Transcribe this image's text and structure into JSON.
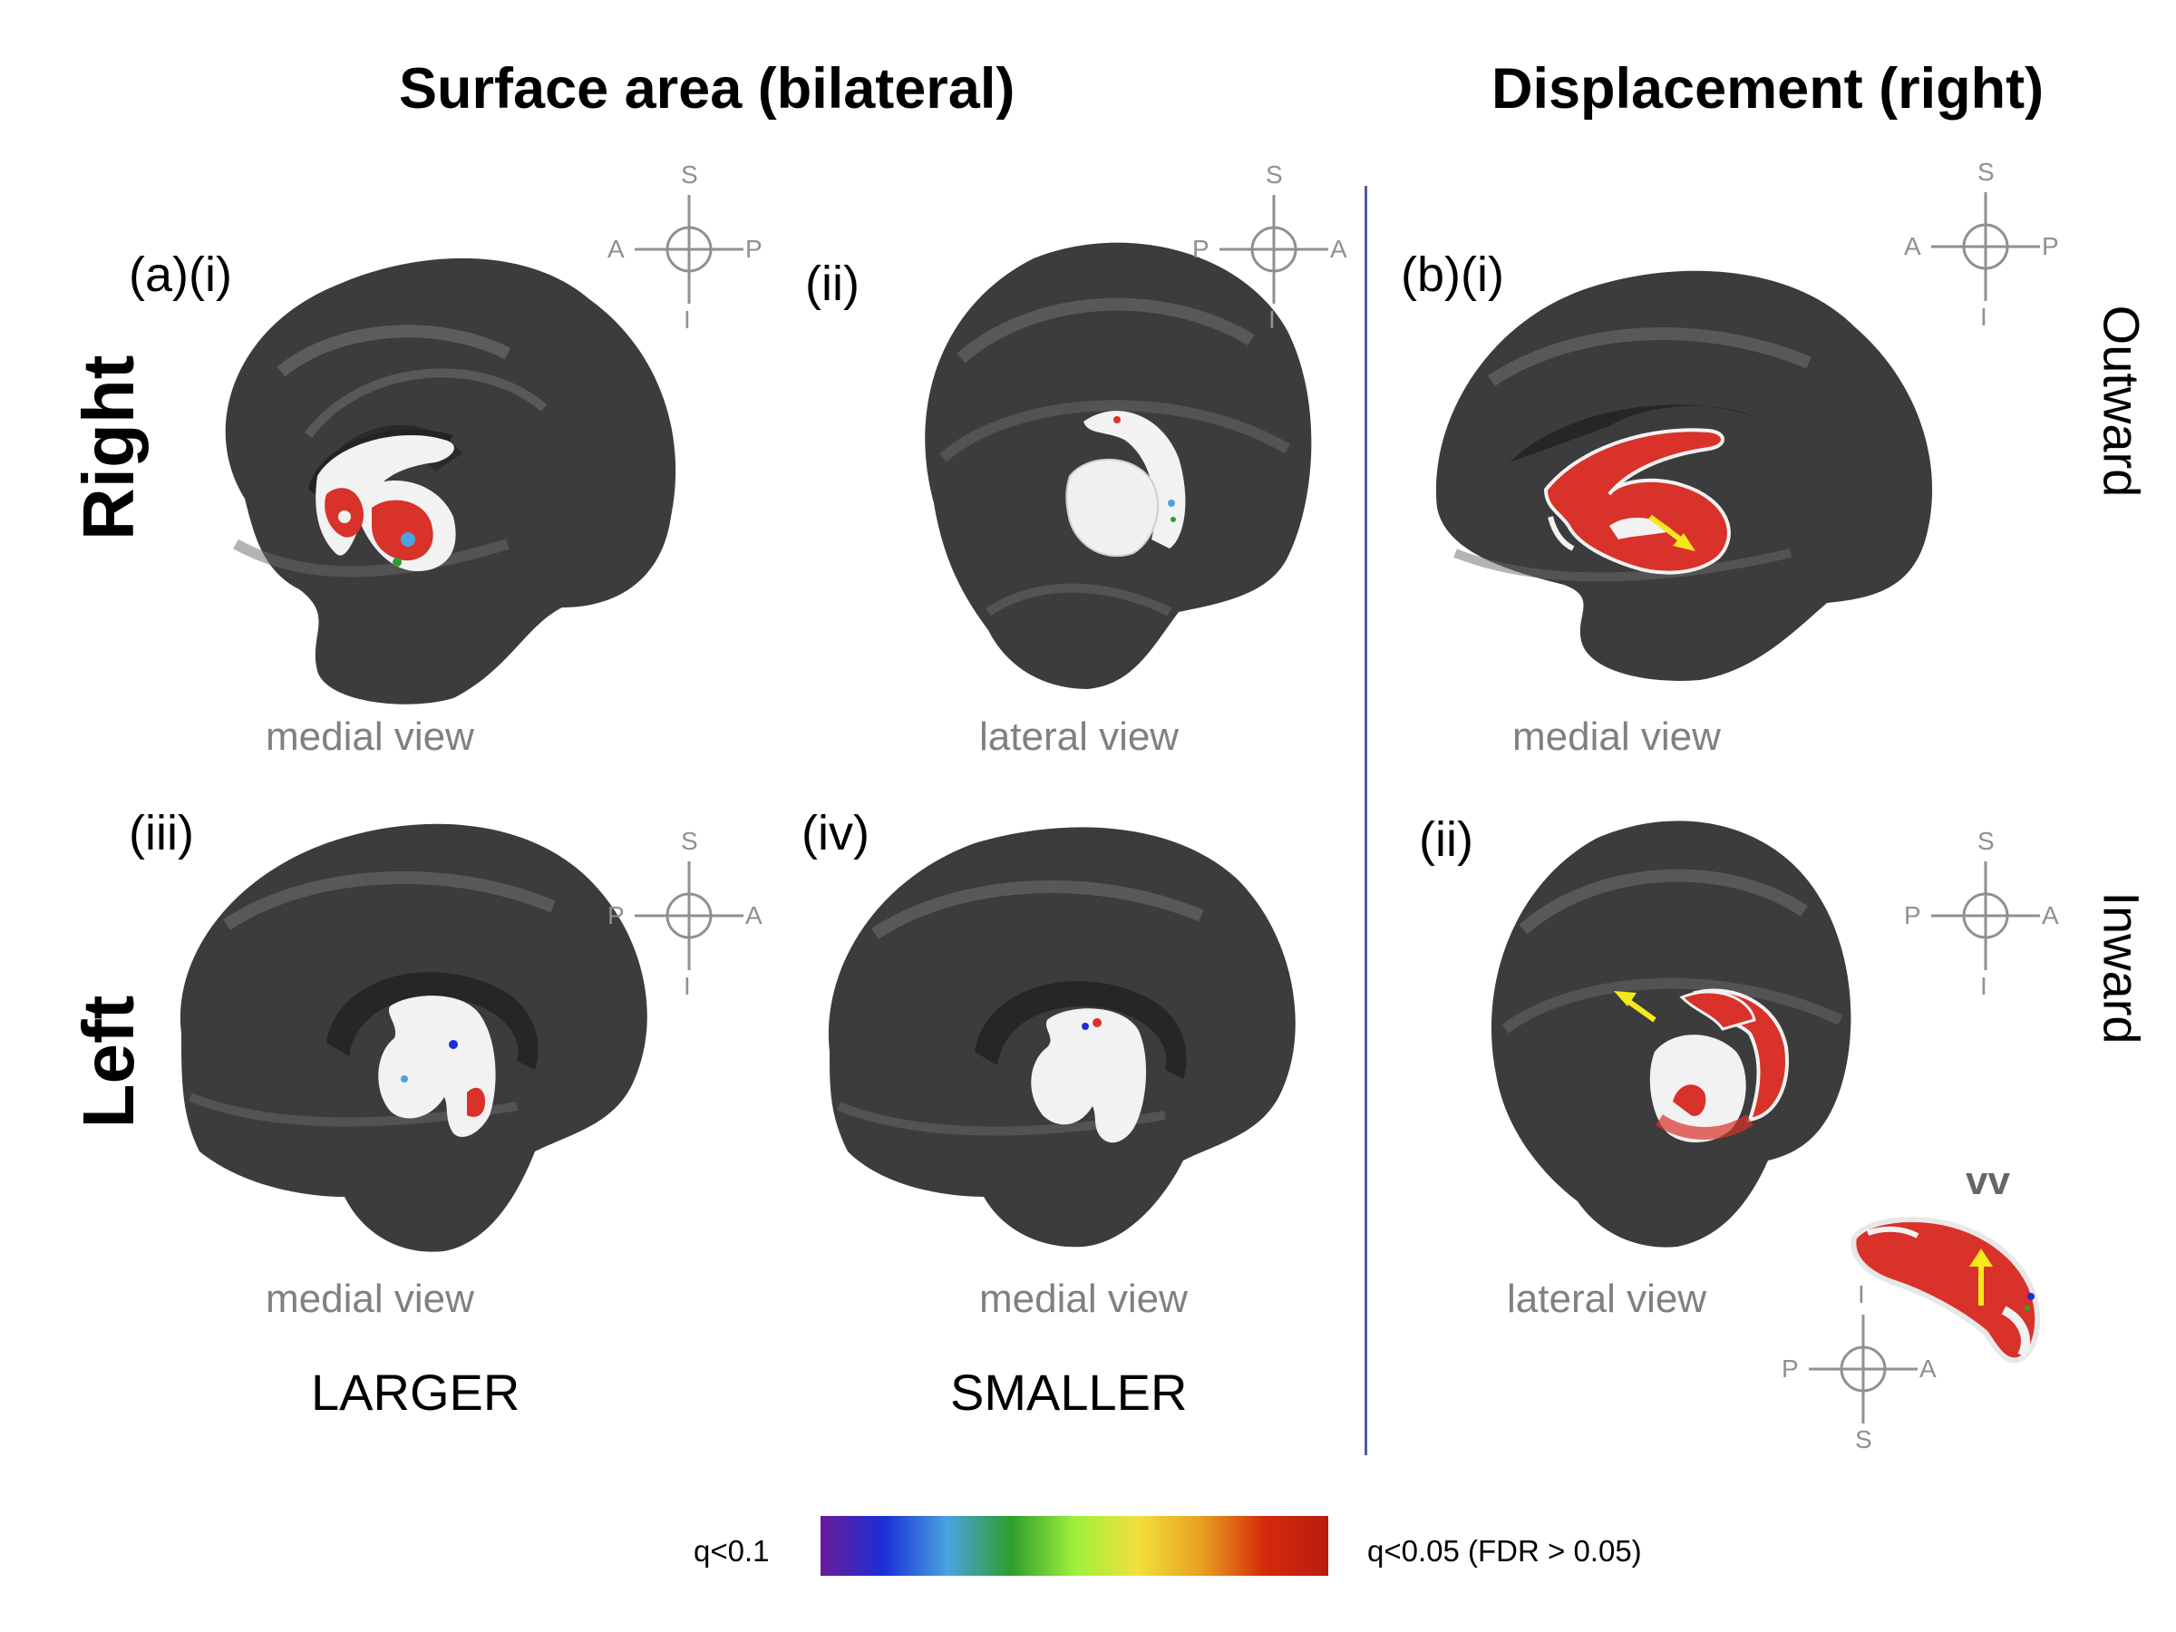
{
  "headers": {
    "surface_area": "Surface area (bilateral)",
    "displacement": "Displacement (right)"
  },
  "rows": {
    "right": "Right",
    "left": "Left"
  },
  "directions": {
    "outward": "Outward",
    "inward": "Inward"
  },
  "panels": {
    "a_i": {
      "label": "(a)(i)",
      "view": "medial view",
      "orientation": {
        "top": "S",
        "bottom": "I",
        "left": "A",
        "right": "P"
      }
    },
    "a_ii": {
      "label": "(ii)",
      "view": "lateral view",
      "orientation": {
        "top": "S",
        "bottom": "I",
        "left": "P",
        "right": "A"
      }
    },
    "a_iii": {
      "label": "(iii)",
      "view": "medial view",
      "orientation": {
        "top": "S",
        "bottom": "I",
        "left": "P",
        "right": "A"
      }
    },
    "a_iv": {
      "label": "(iv)",
      "view": "medial view"
    },
    "b_i": {
      "label": "(b)(i)",
      "view": "medial view",
      "orientation": {
        "top": "S",
        "bottom": "I",
        "left": "A",
        "right": "P"
      }
    },
    "b_ii": {
      "label": "(ii)",
      "view": "lateral view",
      "orientation": {
        "top": "S",
        "bottom": "I",
        "left": "P",
        "right": "A"
      }
    },
    "vv": {
      "label": "vv",
      "orientation": {
        "top": "I",
        "bottom": "S",
        "left": "P",
        "right": "A"
      }
    }
  },
  "columns": {
    "larger": "LARGER",
    "smaller": "SMALLER"
  },
  "colorbar": {
    "left_label": "q<0.1",
    "right_label": "q<0.05 (FDR > 0.05)",
    "colors": [
      "#6a1b9a",
      "#1a2fd6",
      "#4aa3e0",
      "#2e9e2e",
      "#9ef03c",
      "#f2e03c",
      "#e8a020",
      "#d42a0a",
      "#b81c10"
    ]
  },
  "colors": {
    "brain": "#3c3c3c",
    "structure": "#f2f2f2",
    "highlight": "#d8322a",
    "arrow": "#f5e81e",
    "divider": "#4a5ea8"
  }
}
